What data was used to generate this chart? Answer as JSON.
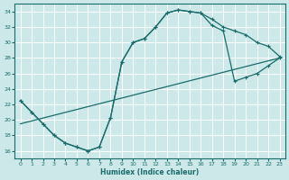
{
  "xlabel": "Humidex (Indice chaleur)",
  "bg_color": "#cce8e8",
  "line_color": "#1a6b6b",
  "grid_color": "#ffffff",
  "xlim": [
    -0.5,
    23.5
  ],
  "ylim": [
    15.0,
    35.0
  ],
  "yticks": [
    16,
    18,
    20,
    22,
    24,
    26,
    28,
    30,
    32,
    34
  ],
  "xticks": [
    0,
    1,
    2,
    3,
    4,
    5,
    6,
    7,
    8,
    9,
    10,
    11,
    12,
    13,
    14,
    15,
    16,
    17,
    18,
    19,
    20,
    21,
    22,
    23
  ],
  "curve1_x": [
    0,
    1,
    2,
    3,
    4,
    5,
    6,
    7,
    8,
    9,
    10,
    11,
    12,
    13,
    14,
    15,
    16,
    17,
    18,
    19,
    20,
    21,
    22,
    23
  ],
  "curve1_y": [
    22.5,
    21.0,
    19.5,
    18.0,
    17.0,
    16.5,
    16.0,
    16.5,
    20.3,
    27.5,
    30.0,
    30.5,
    32.0,
    33.8,
    34.2,
    34.0,
    33.8,
    33.0,
    32.0,
    31.5,
    31.0,
    30.0,
    29.5,
    28.2
  ],
  "curve2_x": [
    0,
    1,
    2,
    3,
    4,
    5,
    6,
    7,
    8,
    9,
    10,
    11,
    12,
    13,
    14,
    15,
    16,
    17,
    18,
    19,
    20,
    21,
    22,
    23
  ],
  "curve2_y": [
    22.5,
    21.0,
    19.5,
    18.0,
    17.0,
    16.5,
    16.0,
    16.5,
    20.3,
    27.5,
    30.0,
    30.5,
    32.0,
    33.8,
    34.2,
    34.0,
    33.8,
    32.2,
    31.5,
    25.0,
    25.5,
    26.0,
    27.0,
    28.0
  ],
  "line3_x": [
    0,
    23
  ],
  "line3_y": [
    19.5,
    28.0
  ]
}
